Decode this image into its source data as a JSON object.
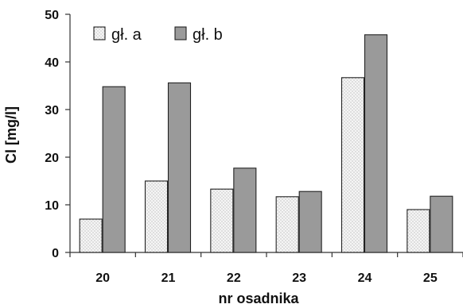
{
  "chart_data": {
    "type": "bar",
    "categories": [
      "20",
      "21",
      "22",
      "23",
      "24",
      "25"
    ],
    "series": [
      {
        "name": "gł. a",
        "values": [
          7,
          15,
          13.3,
          11.7,
          36.7,
          9
        ],
        "color": "#f2f2f2",
        "pattern": "dotted"
      },
      {
        "name": "gł. b",
        "values": [
          34.8,
          35.6,
          17.7,
          12.8,
          45.7,
          11.8
        ],
        "color": "#9a9a9a",
        "pattern": "solid"
      }
    ],
    "title": "",
    "xlabel": "nr osadnika",
    "ylabel": "Cl [mg/l]",
    "ylim": [
      0,
      50
    ],
    "yticks": [
      0,
      10,
      20,
      30,
      40,
      50
    ],
    "grid": false,
    "legend_position": "top-left"
  }
}
